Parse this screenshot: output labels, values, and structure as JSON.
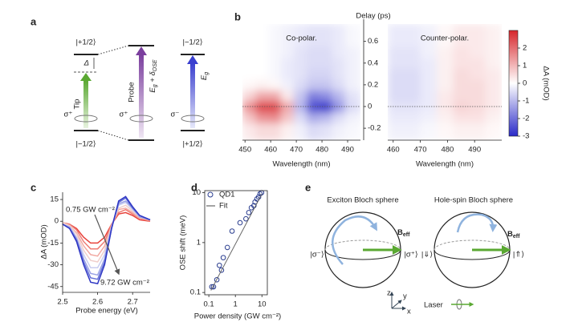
{
  "panel_labels": [
    "a",
    "b",
    "c",
    "d",
    "e"
  ],
  "diagram_a": {
    "left_top": "|+1/2⟩",
    "left_bottom": "|−1/2⟩",
    "delta": "Δ",
    "tip": "Tip",
    "sigma_left": "σ⁺",
    "probe": "Probe",
    "sigma_mid": "σ⁺",
    "probe_E": "E",
    "probe_g": "g",
    "probe_plus": " + δ",
    "probe_ose": "OSE",
    "right_top": "|−1/2⟩",
    "right_bottom": "|+1/2⟩",
    "eg_E": "E",
    "eg_g": "g",
    "sigma_right": "σ⁻"
  },
  "chart_data": [
    {
      "type": "heatmap",
      "title": "Co-polar.",
      "xlabel": "Wavelength (nm)",
      "ylabel": "Delay (ps)",
      "xlim": [
        449,
        495
      ],
      "xticks": [
        450,
        460,
        470,
        480,
        490
      ],
      "ylim": [
        -0.31,
        0.76
      ],
      "yticks": [
        -0.2,
        0,
        0.2,
        0.4,
        0.6
      ],
      "hline": 0,
      "x_bins": [
        449,
        454,
        459,
        464,
        469,
        474,
        479,
        484,
        489,
        495
      ],
      "y_bins": [
        -0.31,
        -0.15,
        -0.05,
        0.05,
        0.15,
        0.25,
        0.35,
        0.45,
        0.55,
        0.76
      ],
      "z": [
        [
          0.3,
          0.5,
          0.5,
          0.2,
          -0.2,
          -0.5,
          -0.4,
          -0.2,
          -0.1
        ],
        [
          0.8,
          1.5,
          1.6,
          0.8,
          -0.5,
          -1.2,
          -1.0,
          -0.5,
          -0.2
        ],
        [
          1.5,
          2.5,
          2.5,
          1.2,
          -1.0,
          -2.5,
          -2.8,
          -1.5,
          -0.5
        ],
        [
          0.6,
          1.2,
          1.2,
          0.3,
          -0.8,
          -1.8,
          -1.6,
          -1.0,
          -0.4
        ],
        [
          0.1,
          0.2,
          0.1,
          -0.2,
          -0.5,
          -0.8,
          -0.8,
          -0.5,
          -0.2
        ],
        [
          0,
          0,
          -0.1,
          -0.3,
          -0.4,
          -0.6,
          -0.6,
          -0.4,
          -0.2
        ],
        [
          0,
          0,
          -0.1,
          -0.3,
          -0.4,
          -0.5,
          -0.5,
          -0.4,
          -0.2
        ],
        [
          0,
          0,
          -0.1,
          -0.2,
          -0.4,
          -0.5,
          -0.5,
          -0.3,
          -0.2
        ],
        [
          0,
          0,
          -0.1,
          -0.2,
          -0.3,
          -0.4,
          -0.4,
          -0.3,
          -0.1
        ]
      ],
      "clim": [
        -3,
        3
      ],
      "cticks": [
        -3,
        -2,
        -1,
        0,
        1,
        2
      ],
      "clabel": "ΔA (mOD)"
    },
    {
      "type": "heatmap",
      "title": "Counter-polar.",
      "xlabel": "Wavelength (nm)",
      "xlim": [
        458,
        500
      ],
      "xticks": [
        460,
        470,
        480,
        490
      ],
      "ylim": [
        -0.31,
        0.76
      ],
      "hline": 0,
      "clim": [
        -3,
        3
      ],
      "x_bins": [
        458,
        464,
        470,
        476,
        482,
        488,
        494,
        500
      ],
      "y_bins": [
        -0.31,
        -0.15,
        -0.05,
        0.05,
        0.15,
        0.25,
        0.35,
        0.45,
        0.55,
        0.76
      ],
      "z": [
        [
          -0.2,
          -0.2,
          -0.1,
          0.1,
          0.2,
          0.2,
          0.1
        ],
        [
          -0.3,
          -0.3,
          -0.2,
          0.2,
          0.4,
          0.4,
          0.2
        ],
        [
          -0.4,
          -0.4,
          -0.3,
          0.3,
          0.6,
          0.5,
          0.3
        ],
        [
          -0.5,
          -0.5,
          -0.3,
          0.3,
          0.5,
          0.5,
          0.3
        ],
        [
          -0.5,
          -0.5,
          -0.3,
          0.2,
          0.5,
          0.5,
          0.3
        ],
        [
          -0.5,
          -0.5,
          -0.3,
          0.2,
          0.5,
          0.4,
          0.3
        ],
        [
          -0.4,
          -0.4,
          -0.3,
          0.2,
          0.4,
          0.4,
          0.2
        ],
        [
          -0.4,
          -0.4,
          -0.2,
          0.2,
          0.4,
          0.3,
          0.2
        ],
        [
          -0.3,
          -0.3,
          -0.2,
          0.1,
          0.3,
          0.3,
          0.2
        ]
      ]
    },
    {
      "type": "line",
      "xlabel": "Probe energy (eV)",
      "ylabel": "ΔA (mOD)",
      "xlim": [
        2.5,
        2.75
      ],
      "xticks": [
        2.5,
        2.6,
        2.7
      ],
      "ylim": [
        -49,
        20
      ],
      "yticks": [
        -45,
        -30,
        -15,
        0,
        15
      ],
      "annotations": [
        {
          "text": "0.75 GW cm⁻²"
        },
        {
          "text": "9.72 GW cm⁻²"
        }
      ],
      "x": [
        2.5,
        2.52,
        2.54,
        2.56,
        2.58,
        2.6,
        2.62,
        2.64,
        2.66,
        2.68,
        2.7,
        2.72,
        2.75
      ],
      "series": [
        {
          "color": "#e8413a",
          "values": [
            -1,
            -2,
            -5,
            -11,
            -15,
            -15,
            -11,
            -2,
            5,
            6,
            4,
            1,
            0
          ]
        },
        {
          "color": "#ee7c74",
          "values": [
            -1,
            -2,
            -6,
            -14,
            -19,
            -19,
            -14,
            -2,
            6,
            8,
            5,
            2,
            0
          ]
        },
        {
          "color": "#f2aaa3",
          "values": [
            -1,
            -3,
            -8,
            -17,
            -23,
            -24,
            -17,
            -3,
            8,
            9,
            6,
            2,
            1
          ]
        },
        {
          "color": "#f0cfcc",
          "values": [
            -1,
            -3,
            -9,
            -20,
            -27,
            -28,
            -20,
            -3,
            9,
            11,
            7,
            3,
            1
          ]
        },
        {
          "color": "#c9cdf0",
          "values": [
            -2,
            -4,
            -11,
            -23,
            -32,
            -32,
            -23,
            -4,
            11,
            13,
            8,
            3,
            1
          ]
        },
        {
          "color": "#9aa2e6",
          "values": [
            -2,
            -4,
            -12,
            -26,
            -36,
            -37,
            -26,
            -4,
            12,
            14,
            9,
            3,
            1
          ]
        },
        {
          "color": "#6470d8",
          "values": [
            -2,
            -5,
            -13,
            -28,
            -39,
            -40,
            -28,
            -5,
            13,
            16,
            9,
            4,
            1
          ]
        },
        {
          "color": "#2f37c4",
          "values": [
            -2,
            -5,
            -14,
            -30,
            -42,
            -43,
            -30,
            -5,
            14,
            17,
            10,
            4,
            1
          ]
        }
      ]
    },
    {
      "type": "scatter",
      "xlabel": "Power density (GW cm⁻²)",
      "ylabel": "OSE shift (meV)",
      "log_x": true,
      "log_y": true,
      "xlim": [
        0.07,
        16
      ],
      "ylim": [
        0.09,
        11
      ],
      "xticks": [
        0.1,
        1,
        10
      ],
      "yticks": [
        0.1,
        1,
        10
      ],
      "series": [
        {
          "name": "QD1",
          "color": "#2a3d8f",
          "marker": "circle",
          "x": [
            0.13,
            0.15,
            0.2,
            0.25,
            0.3,
            0.35,
            0.5,
            0.75,
            1.5,
            2.5,
            3.2,
            4,
            5,
            5.5,
            6.5,
            7.5,
            8.5,
            9.7
          ],
          "values": [
            0.13,
            0.13,
            0.18,
            0.35,
            0.28,
            0.5,
            0.8,
            1.7,
            2.5,
            3,
            4,
            5,
            5.5,
            6.5,
            7.5,
            8.2,
            9.5,
            10
          ]
        },
        {
          "name": "Fit",
          "color": "#666666",
          "marker": "line",
          "x": [
            0.12,
            10
          ],
          "values": [
            0.11,
            9.5
          ]
        }
      ]
    }
  ],
  "diagram_e": {
    "left_title": "Exciton Bloch sphere",
    "left_minus": "|σ⁻⟩",
    "left_plus": "|σ⁺⟩",
    "left_B": "B",
    "left_eff": "eff",
    "right_title": "Hole-spin Bloch sphere",
    "right_down": "|⇓⟩",
    "right_up": "|⇑⟩",
    "right_B": "B",
    "right_eff": "eff",
    "axis_z": "z",
    "axis_y": "y",
    "axis_x": "x",
    "laser": "Laser"
  }
}
